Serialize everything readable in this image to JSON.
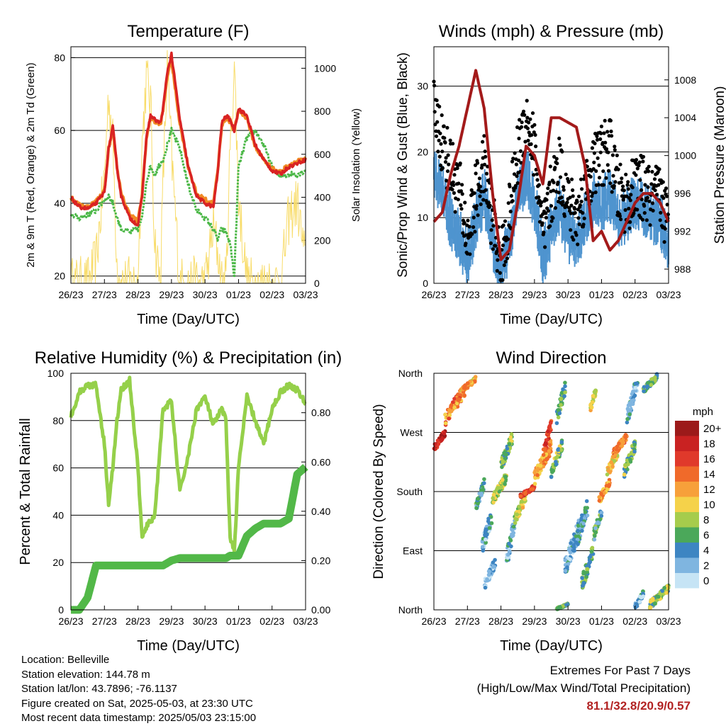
{
  "colors": {
    "t2m": "#d92323",
    "t9m": "#f08a24",
    "td": "#4cb848",
    "solar": "#f8dc6a",
    "wind": "#4f94cf",
    "gust": "#000000",
    "pressure": "#a31a1a",
    "rh": "#95d04a",
    "precip": "#52b848",
    "grid": "#000000",
    "extremes": "#b22222"
  },
  "time_ticks": [
    "26/23",
    "27/23",
    "28/23",
    "29/23",
    "30/23",
    "01/23",
    "02/23",
    "03/23"
  ],
  "chart_data": [
    {
      "id": "temperature",
      "type": "line",
      "title": "Temperature (F)",
      "xlabel": "Time (Day/UTC)",
      "ylabel": "2m & 9m T (Red, Orange) & 2m Td (Green)",
      "y2label": "Solar Insolation (Yellow)",
      "ylim": [
        18,
        83
      ],
      "yticks": [
        20,
        40,
        60,
        80
      ],
      "y2lim": [
        0,
        1100
      ],
      "y2ticks": [
        0,
        200,
        400,
        600,
        800,
        1000
      ],
      "x_hours": [
        0,
        6,
        12,
        18,
        24,
        27,
        30,
        33,
        36,
        42,
        48,
        51,
        54,
        57,
        60,
        64,
        66,
        69,
        72,
        78,
        84,
        90,
        96,
        102,
        105,
        108,
        111,
        114,
        117,
        120,
        126,
        132,
        138,
        144,
        150,
        156,
        162,
        168
      ],
      "series": [
        {
          "key": "t2m",
          "values": [
            41.5,
            39,
            38.5,
            40,
            43,
            55,
            61,
            50,
            42,
            36,
            34,
            42,
            58,
            64,
            63,
            62,
            66,
            76,
            81,
            63,
            50,
            42,
            40,
            39,
            48,
            62,
            64,
            63,
            60,
            66,
            64,
            56,
            52,
            49,
            48,
            50,
            51,
            52
          ]
        },
        {
          "key": "t9m",
          "values": [
            41.5,
            39.5,
            39,
            40.5,
            43.5,
            55,
            60.5,
            50,
            42.5,
            37,
            35,
            42.5,
            57.5,
            63.5,
            62.5,
            61.5,
            65.5,
            75,
            79,
            62,
            50,
            42.5,
            41,
            40,
            48.5,
            61.5,
            63.5,
            62.5,
            60,
            65.5,
            63.5,
            55.5,
            52,
            49.5,
            48.5,
            50.5,
            51.5,
            52
          ]
        },
        {
          "key": "td",
          "values": [
            37,
            36,
            37,
            38,
            41,
            42,
            40,
            36,
            33,
            32,
            33,
            36,
            46,
            50,
            48,
            51,
            52,
            56,
            60,
            55,
            45,
            38,
            36,
            33,
            30,
            33,
            32,
            29,
            20,
            50,
            58,
            60,
            56,
            50,
            47,
            48,
            48,
            49
          ]
        },
        {
          "key": "solar",
          "values": [
            0,
            0,
            0,
            100,
            500,
            880,
            650,
            100,
            0,
            0,
            0,
            650,
            960,
            850,
            200,
            0,
            480,
            1000,
            600,
            0,
            0,
            0,
            0,
            260,
            150,
            0,
            0,
            620,
            1020,
            400,
            0,
            0,
            0,
            0,
            0,
            300,
            380,
            80
          ]
        }
      ]
    },
    {
      "id": "winds",
      "type": "line",
      "title": "Winds (mph) & Pressure (mb)",
      "xlabel": "Time (Day/UTC)",
      "ylabel": "Sonic/Prop Wind & Gust (Blue, Black)",
      "y2label": "Station Pressure (Maroon)",
      "ylim": [
        0,
        36
      ],
      "yticks": [
        0,
        10,
        20,
        30
      ],
      "y2lim": [
        986.5,
        1011.5
      ],
      "y2ticks": [
        988,
        992,
        996,
        1000,
        1004,
        1008
      ],
      "x_hours": [
        0,
        6,
        12,
        18,
        24,
        30,
        36,
        42,
        48,
        54,
        60,
        66,
        72,
        78,
        84,
        90,
        96,
        102,
        108,
        114,
        120,
        126,
        132,
        138,
        144,
        150,
        156,
        162,
        168
      ],
      "series": [
        {
          "key": "wind",
          "values": [
            16,
            14,
            9,
            7,
            3,
            9,
            13,
            6,
            1,
            6,
            13,
            16,
            12,
            3,
            8,
            11,
            7,
            6,
            9,
            12,
            11,
            13,
            9,
            10,
            12,
            11,
            10,
            9,
            6
          ]
        },
        {
          "key": "gust",
          "values": [
            27,
            22,
            18,
            15,
            7,
            14,
            18,
            10,
            3,
            11,
            20,
            26,
            21,
            7,
            14,
            18,
            13,
            10,
            15,
            18,
            20,
            21,
            14,
            13,
            15,
            15,
            13,
            14,
            9
          ]
        },
        {
          "key": "pressure",
          "values": [
            993,
            994,
            998,
            1001,
            1005,
            1009,
            1005,
            996,
            989,
            990,
            995,
            1001,
            1000,
            997,
            1004,
            1004,
            1003.5,
            1003,
            999,
            991,
            992,
            990,
            991,
            993,
            995,
            996,
            996,
            995,
            993
          ]
        }
      ]
    },
    {
      "id": "humidity",
      "type": "line",
      "title": "Relative Humidity (%) & Precipitation (in)",
      "xlabel": "Time (Day/UTC)",
      "ylabel": "Percent & Total Rainfall",
      "ylim": [
        0,
        100
      ],
      "yticks": [
        0,
        20,
        40,
        60,
        80,
        100
      ],
      "y2lim": [
        0,
        0.96
      ],
      "y2ticks": [
        "0.00",
        "0.20",
        "0.40",
        "0.60",
        "0.80"
      ],
      "x_hours": [
        0,
        6,
        12,
        18,
        24,
        27,
        30,
        33,
        36,
        42,
        48,
        51,
        54,
        60,
        66,
        72,
        78,
        84,
        90,
        96,
        102,
        108,
        111,
        114,
        117,
        120,
        126,
        132,
        138,
        144,
        150,
        156,
        162,
        168
      ],
      "series": [
        {
          "key": "rh",
          "values": [
            82,
            92,
            95,
            95,
            70,
            45,
            60,
            80,
            93,
            97,
            60,
            30,
            35,
            40,
            85,
            88,
            50,
            65,
            85,
            90,
            78,
            85,
            80,
            30,
            25,
            60,
            90,
            80,
            70,
            85,
            92,
            95,
            93,
            87
          ]
        },
        {
          "key": "precip",
          "values": [
            0.0,
            0.0,
            0.05,
            0.18,
            0.18,
            0.18,
            0.18,
            0.18,
            0.18,
            0.18,
            0.18,
            0.18,
            0.18,
            0.18,
            0.18,
            0.2,
            0.21,
            0.21,
            0.21,
            0.21,
            0.21,
            0.21,
            0.21,
            0.22,
            0.22,
            0.22,
            0.3,
            0.33,
            0.35,
            0.35,
            0.35,
            0.37,
            0.55,
            0.58
          ]
        }
      ]
    },
    {
      "id": "direction",
      "type": "scatter",
      "title": "Wind Direction",
      "xlabel": "Time (Day/UTC)",
      "ylabel": "Direction (Colored By Speed)",
      "ylim": [
        0,
        360
      ],
      "yticks": [
        "North",
        "East",
        "South",
        "West",
        "North"
      ],
      "legend_title": "mph",
      "legend_labels": [
        "20+",
        "18",
        "16",
        "14",
        "12",
        "10",
        "8",
        "6",
        "4",
        "2",
        "0"
      ],
      "legend_colors": [
        "#9c1a1a",
        "#c92222",
        "#e0392b",
        "#f06a2a",
        "#f7a03a",
        "#f5d24a",
        "#a6cc4c",
        "#4ba85a",
        "#3d85c2",
        "#7fb5e0",
        "#c6e4f5"
      ],
      "clusters": [
        {
          "x": [
            0,
            8
          ],
          "dir": [
            240,
            275
          ],
          "speed": 17
        },
        {
          "x": [
            8,
            22
          ],
          "dir": [
            280,
            345
          ],
          "speed": 13
        },
        {
          "x": [
            20,
            30
          ],
          "dir": [
            330,
            355
          ],
          "speed": 11
        },
        {
          "x": [
            30,
            36
          ],
          "dir": [
            150,
            200
          ],
          "speed": 5
        },
        {
          "x": [
            34,
            42
          ],
          "dir": [
            80,
            160
          ],
          "speed": 3
        },
        {
          "x": [
            36,
            44
          ],
          "dir": [
            30,
            80
          ],
          "speed": 2
        },
        {
          "x": [
            42,
            52
          ],
          "dir": [
            160,
            210
          ],
          "speed": 8
        },
        {
          "x": [
            48,
            56
          ],
          "dir": [
            210,
            270
          ],
          "speed": 7
        },
        {
          "x": [
            52,
            58
          ],
          "dir": [
            60,
            150
          ],
          "speed": 3
        },
        {
          "x": [
            58,
            66
          ],
          "dir": [
            130,
            180
          ],
          "speed": 9
        },
        {
          "x": [
            62,
            72
          ],
          "dir": [
            170,
            190
          ],
          "speed": 16
        },
        {
          "x": [
            72,
            84
          ],
          "dir": [
            190,
            260
          ],
          "speed": 12
        },
        {
          "x": [
            78,
            84
          ],
          "dir": [
            230,
            290
          ],
          "speed": 16
        },
        {
          "x": [
            84,
            92
          ],
          "dir": [
            200,
            260
          ],
          "speed": 7
        },
        {
          "x": [
            88,
            94
          ],
          "dir": [
            280,
            350
          ],
          "speed": 6
        },
        {
          "x": [
            88,
            96
          ],
          "dir": [
            0,
            10
          ],
          "speed": 6
        },
        {
          "x": [
            94,
            104
          ],
          "dir": [
            50,
            140
          ],
          "speed": 3
        },
        {
          "x": [
            100,
            110
          ],
          "dir": [
            80,
            170
          ],
          "speed": 4
        },
        {
          "x": [
            106,
            114
          ],
          "dir": [
            30,
            100
          ],
          "speed": 6
        },
        {
          "x": [
            112,
            116
          ],
          "dir": [
            300,
            340
          ],
          "speed": 9
        },
        {
          "x": [
            114,
            120
          ],
          "dir": [
            100,
            160
          ],
          "speed": 5
        },
        {
          "x": [
            118,
            126
          ],
          "dir": [
            160,
            200
          ],
          "speed": 12
        },
        {
          "x": [
            124,
            132
          ],
          "dir": [
            200,
            250
          ],
          "speed": 10
        },
        {
          "x": [
            128,
            138
          ],
          "dir": [
            230,
            270
          ],
          "speed": 14
        },
        {
          "x": [
            136,
            144
          ],
          "dir": [
            200,
            260
          ],
          "speed": 7
        },
        {
          "x": [
            138,
            146
          ],
          "dir": [
            280,
            360
          ],
          "speed": 3
        },
        {
          "x": [
            144,
            150
          ],
          "dir": [
            0,
            30
          ],
          "speed": 3
        },
        {
          "x": [
            150,
            160
          ],
          "dir": [
            330,
            360
          ],
          "speed": 6
        },
        {
          "x": [
            154,
            168
          ],
          "dir": [
            0,
            40
          ],
          "speed": 7
        }
      ]
    }
  ],
  "info": {
    "location": "Location: Belleville",
    "elevation": "Station elevation: 144.78 m",
    "latlon": "Station lat/lon: 43.7896; -76.1137",
    "created": "Figure created on Sat, 2025-05-03, at 23:30 UTC",
    "recent": "Most recent data timestamp: 2025/05/03 23:15:00"
  },
  "extremes": {
    "title": "Extremes For Past 7 Days",
    "subtitle": "(High/Low/Max Wind/Total Precipitation)",
    "values": "81.1/32.8/20.9/0.57"
  }
}
